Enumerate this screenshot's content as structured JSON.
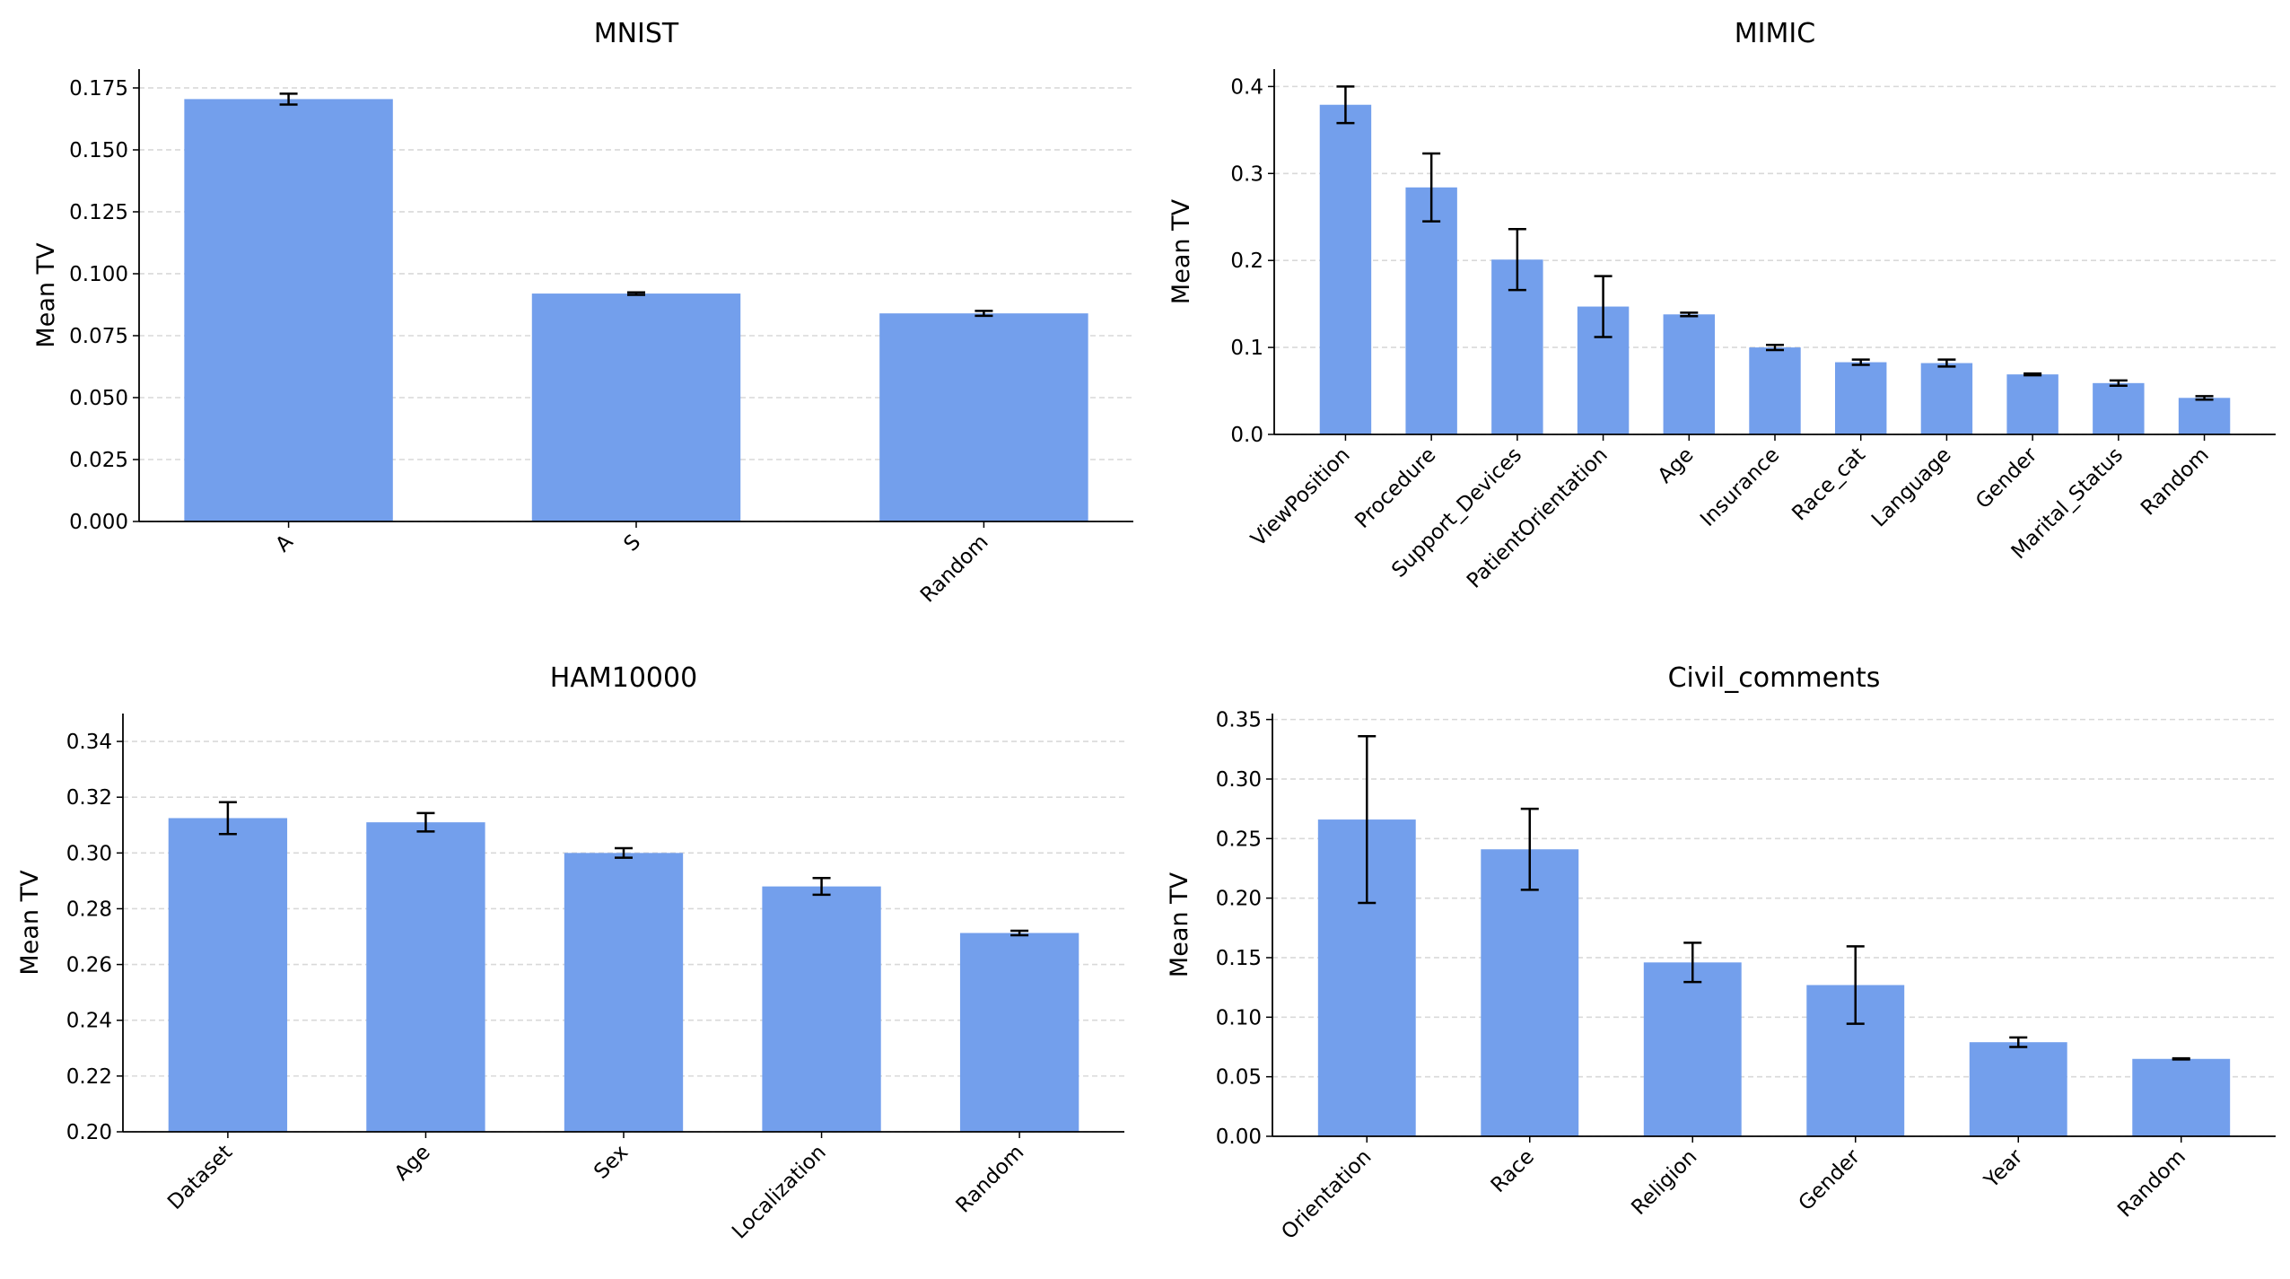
{
  "bar_color": "#739FEC",
  "chart_data": [
    {
      "type": "bar",
      "title": "MNIST",
      "ylabel": "Mean TV",
      "xlabel": "",
      "ylim": [
        0,
        0.1826
      ],
      "yticks": [
        "0.000",
        "0.025",
        "0.050",
        "0.075",
        "0.100",
        "0.125",
        "0.150",
        "0.175"
      ],
      "grid": "y-dashed",
      "categories": [
        "A",
        "S",
        "Random"
      ],
      "values": [
        0.1705,
        0.092,
        0.084
      ],
      "errors": [
        0.0022,
        0.0005,
        0.001
      ]
    },
    {
      "type": "bar",
      "title": "MIMIC",
      "ylabel": "Mean TV",
      "xlabel": "",
      "ylim": [
        0,
        0.42
      ],
      "yticks": [
        "0.0",
        "0.1",
        "0.2",
        "0.3",
        "0.4"
      ],
      "grid": "y-dashed",
      "categories": [
        "ViewPosition",
        "Procedure",
        "Support_Devices",
        "PatientOrientation",
        "Age",
        "Insurance",
        "Race_cat",
        "Language",
        "Gender",
        "Marital_Status",
        "Random"
      ],
      "values": [
        0.379,
        0.284,
        0.201,
        0.147,
        0.138,
        0.1,
        0.083,
        0.082,
        0.069,
        0.059,
        0.042
      ],
      "errors": [
        0.021,
        0.039,
        0.035,
        0.035,
        0.002,
        0.003,
        0.003,
        0.004,
        0.001,
        0.003,
        0.002
      ]
    },
    {
      "type": "bar",
      "title": "HAM10000",
      "ylabel": "Mean TV",
      "xlabel": "",
      "ylim": [
        0.2,
        0.35
      ],
      "yticks": [
        "0.20",
        "0.22",
        "0.24",
        "0.26",
        "0.28",
        "0.30",
        "0.32",
        "0.34"
      ],
      "grid": "y-dashed",
      "categories": [
        "Dataset",
        "Age",
        "Sex",
        "Localization",
        "Random"
      ],
      "values": [
        0.3125,
        0.311,
        0.3,
        0.288,
        0.2713
      ],
      "errors": [
        0.0057,
        0.0033,
        0.0017,
        0.003,
        0.0008
      ]
    },
    {
      "type": "bar",
      "title": "Civil_comments",
      "ylabel": "Mean TV",
      "xlabel": "",
      "ylim": [
        0,
        0.355
      ],
      "yticks": [
        "0.00",
        "0.05",
        "0.10",
        "0.15",
        "0.20",
        "0.25",
        "0.30",
        "0.35"
      ],
      "grid": "y-dashed",
      "categories": [
        "Orientation",
        "Race",
        "Religion",
        "Gender",
        "Year",
        "Random"
      ],
      "values": [
        0.266,
        0.241,
        0.146,
        0.127,
        0.079,
        0.065
      ],
      "errors": [
        0.07,
        0.034,
        0.0165,
        0.0325,
        0.004,
        0.0005
      ]
    }
  ]
}
